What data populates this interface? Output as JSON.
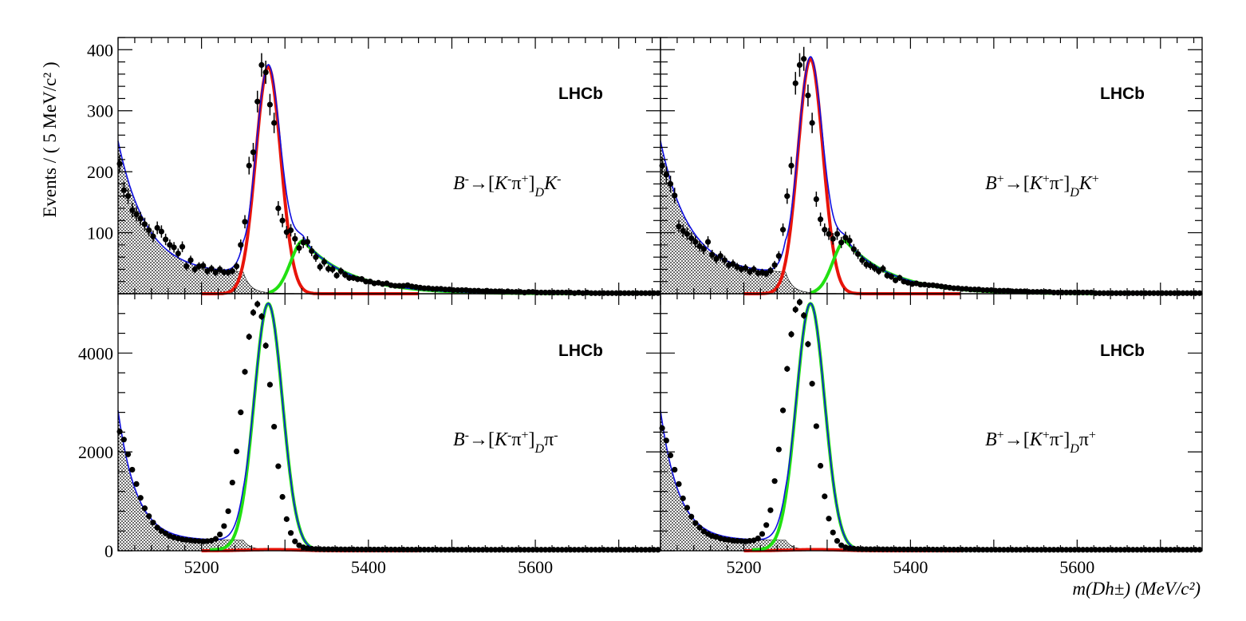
{
  "chart_data": {
    "type": "scatter",
    "xlabel": "m(Dh±) (MeV/c²)",
    "ylabel": "Events / ( 5 MeV/c² )",
    "xlim": [
      5100,
      5750
    ],
    "xticks": [
      5200,
      5400,
      5600
    ],
    "series_legend": {
      "data": "black points with error bars",
      "total_fit": "blue line",
      "DK_signal": "red line",
      "Dpi_peak": "green line",
      "background": "hatched black area"
    },
    "panels": [
      {
        "id": "top-left",
        "label": "LHCb",
        "decay": {
          "B": "B",
          "Bch": "-",
          "k1": "K",
          "k1c": "-",
          "h1": "π",
          "h1c": "+",
          "sub": "D",
          "h2": "K",
          "h2c": "-"
        },
        "ylim": [
          0,
          420
        ],
        "yticks": [
          100,
          200,
          300,
          400
        ],
        "x": [
          5102,
          5107,
          5112,
          5117,
          5122,
          5127,
          5132,
          5137,
          5142,
          5147,
          5152,
          5157,
          5162,
          5167,
          5172,
          5177,
          5182,
          5187,
          5192,
          5197,
          5202,
          5207,
          5212,
          5217,
          5222,
          5227,
          5232,
          5237,
          5242,
          5247,
          5252,
          5257,
          5262,
          5267,
          5272,
          5277,
          5282,
          5287,
          5292,
          5297,
          5302,
          5307,
          5312,
          5317,
          5322,
          5327,
          5332,
          5337,
          5342,
          5347,
          5352,
          5357,
          5362,
          5367,
          5372,
          5377,
          5382,
          5387,
          5392,
          5397,
          5402,
          5407,
          5412,
          5417,
          5422,
          5427,
          5432,
          5437,
          5442,
          5447,
          5452,
          5457,
          5462,
          5467,
          5472,
          5477,
          5482,
          5487,
          5492,
          5497,
          5502,
          5507,
          5512,
          5517,
          5522,
          5527,
          5532,
          5537,
          5542,
          5547,
          5552,
          5557,
          5562,
          5567,
          5572,
          5577,
          5582,
          5587,
          5592,
          5597,
          5602,
          5607,
          5612,
          5617,
          5622,
          5627,
          5632,
          5637,
          5642,
          5647,
          5652,
          5657,
          5662,
          5667,
          5672,
          5677,
          5682,
          5687,
          5692,
          5697,
          5702,
          5707,
          5712,
          5717,
          5722,
          5727,
          5732,
          5737,
          5742,
          5747
        ],
        "y": [
          213,
          170,
          160,
          137,
          130,
          123,
          114,
          104,
          94,
          108,
          102,
          89,
          80,
          76,
          66,
          77,
          45,
          55,
          40,
          45,
          46,
          37,
          41,
          35,
          40,
          35,
          35,
          37,
          45,
          80,
          118,
          210,
          232,
          315,
          375,
          363,
          310,
          280,
          140,
          120,
          101,
          104,
          90,
          75,
          84,
          85,
          70,
          60,
          44,
          52,
          41,
          40,
          30,
          37,
          31,
          26,
          26,
          24,
          24,
          20,
          20,
          17,
          18,
          16,
          17,
          14,
          13,
          13,
          13,
          14,
          12,
          11,
          10,
          9,
          9,
          8,
          8,
          8,
          7,
          7,
          6,
          6,
          6,
          6,
          5,
          5,
          5,
          4,
          5,
          4,
          4,
          4,
          3,
          4,
          3,
          3,
          3,
          2,
          3,
          3,
          2,
          2,
          2,
          2,
          2,
          2,
          2,
          2,
          2,
          1,
          2,
          1,
          2,
          1,
          1,
          1,
          1,
          1,
          1,
          1,
          1,
          1,
          1,
          1,
          1,
          1,
          1,
          1,
          1,
          1
        ]
      },
      {
        "id": "top-right",
        "label": "LHCb",
        "decay": {
          "B": "B",
          "Bch": "+",
          "k1": "K",
          "k1c": "+",
          "h1": "π",
          "h1c": "-",
          "sub": "D",
          "h2": "K",
          "h2c": "+"
        },
        "ylim": [
          0,
          420
        ],
        "yticks": [
          100,
          200,
          300,
          400
        ],
        "x": [
          5102,
          5107,
          5112,
          5117,
          5122,
          5127,
          5132,
          5137,
          5142,
          5147,
          5152,
          5157,
          5162,
          5167,
          5172,
          5177,
          5182,
          5187,
          5192,
          5197,
          5202,
          5207,
          5212,
          5217,
          5222,
          5227,
          5232,
          5237,
          5242,
          5247,
          5252,
          5257,
          5262,
          5267,
          5272,
          5277,
          5282,
          5287,
          5292,
          5297,
          5302,
          5307,
          5312,
          5317,
          5322,
          5327,
          5332,
          5337,
          5342,
          5347,
          5352,
          5357,
          5362,
          5367,
          5372,
          5377,
          5382,
          5387,
          5392,
          5397,
          5402,
          5407,
          5412,
          5417,
          5422,
          5427,
          5432,
          5437,
          5442,
          5447,
          5452,
          5457,
          5462,
          5467,
          5472,
          5477,
          5482,
          5487,
          5492,
          5497,
          5502,
          5507,
          5512,
          5517,
          5522,
          5527,
          5532,
          5537,
          5542,
          5547,
          5552,
          5557,
          5562,
          5567,
          5572,
          5577,
          5582,
          5587,
          5592,
          5597,
          5602,
          5607,
          5612,
          5617,
          5622,
          5627,
          5632,
          5637,
          5642,
          5647,
          5652,
          5657,
          5662,
          5667,
          5672,
          5677,
          5682,
          5687,
          5692,
          5697,
          5702,
          5707,
          5712,
          5717,
          5722,
          5727,
          5732,
          5737,
          5742,
          5747
        ],
        "y": [
          210,
          195,
          180,
          161,
          110,
          103,
          98,
          91,
          85,
          78,
          73,
          85,
          64,
          57,
          62,
          55,
          47,
          49,
          44,
          40,
          42,
          36,
          40,
          34,
          35,
          33,
          38,
          47,
          62,
          105,
          160,
          210,
          345,
          375,
          385,
          325,
          280,
          155,
          122,
          105,
          98,
          90,
          98,
          84,
          92,
          87,
          73,
          65,
          55,
          48,
          46,
          42,
          37,
          41,
          30,
          28,
          22,
          26,
          20,
          18,
          16,
          17,
          15,
          15,
          14,
          14,
          13,
          12,
          11,
          10,
          9,
          9,
          8,
          8,
          7,
          7,
          7,
          6,
          6,
          6,
          5,
          5,
          5,
          5,
          4,
          4,
          4,
          4,
          3,
          3,
          3,
          3,
          3,
          3,
          2,
          2,
          2,
          2,
          2,
          2,
          2,
          2,
          2,
          2,
          1,
          1,
          1,
          1,
          1,
          1,
          1,
          1,
          1,
          1,
          1,
          1,
          1,
          1,
          1,
          1,
          1,
          1,
          1,
          1,
          1,
          1,
          1,
          1,
          1,
          1
        ]
      },
      {
        "id": "bottom-left",
        "label": "LHCb",
        "decay": {
          "B": "B",
          "Bch": "-",
          "k1": "K",
          "k1c": "-",
          "h1": "π",
          "h1c": "+",
          "sub": "D",
          "h2": "π",
          "h2c": "-"
        },
        "ylim": [
          0,
          5200
        ],
        "yticks": [
          0,
          2000,
          4000
        ],
        "x": [
          5102,
          5107,
          5112,
          5117,
          5122,
          5127,
          5132,
          5137,
          5142,
          5147,
          5152,
          5157,
          5162,
          5167,
          5172,
          5177,
          5182,
          5187,
          5192,
          5197,
          5202,
          5207,
          5212,
          5217,
          5222,
          5227,
          5232,
          5237,
          5242,
          5247,
          5252,
          5257,
          5262,
          5267,
          5272,
          5277,
          5282,
          5287,
          5292,
          5297,
          5302,
          5307,
          5312,
          5317,
          5322,
          5327,
          5332,
          5337,
          5342,
          5347,
          5352,
          5357,
          5362,
          5367,
          5372,
          5377,
          5382,
          5387,
          5392,
          5397,
          5402,
          5407,
          5412,
          5417,
          5422,
          5427,
          5432,
          5437,
          5442,
          5447,
          5452,
          5457,
          5462,
          5467,
          5472,
          5477,
          5482,
          5487,
          5492,
          5497,
          5502,
          5507,
          5512,
          5517,
          5522,
          5527,
          5532,
          5537,
          5542,
          5547,
          5552,
          5557,
          5562,
          5567,
          5572,
          5577,
          5582,
          5587,
          5592,
          5597,
          5602,
          5607,
          5612,
          5617,
          5622,
          5627,
          5632,
          5637,
          5642,
          5647,
          5652,
          5657,
          5662,
          5667,
          5672,
          5677,
          5682,
          5687,
          5692,
          5697,
          5702,
          5707,
          5712,
          5717,
          5722,
          5727,
          5732,
          5737,
          5742,
          5747
        ],
        "y": [
          2410,
          2250,
          1950,
          1640,
          1350,
          1070,
          860,
          700,
          570,
          470,
          400,
          350,
          300,
          270,
          250,
          230,
          220,
          210,
          200,
          195,
          190,
          195,
          205,
          240,
          330,
          500,
          800,
          1380,
          2010,
          2800,
          3620,
          4330,
          4820,
          4990,
          4740,
          4150,
          3360,
          2510,
          1710,
          1090,
          640,
          360,
          190,
          110,
          70,
          50,
          40,
          35,
          32,
          30,
          30,
          29,
          28,
          28,
          27,
          27,
          26,
          26,
          26,
          25,
          25,
          25,
          25,
          24,
          24,
          24,
          24,
          23,
          23,
          23,
          23,
          23,
          22,
          22,
          22,
          22,
          22,
          21,
          21,
          21,
          21,
          21,
          21,
          20,
          20,
          20,
          20,
          20,
          20,
          20,
          20,
          20,
          20,
          20,
          20,
          20,
          20,
          20,
          20,
          20,
          20,
          20,
          20,
          20,
          20,
          20,
          20,
          20,
          20,
          20,
          20,
          20,
          20,
          20,
          20,
          20,
          20,
          20,
          20,
          20,
          20,
          20,
          20,
          20,
          20,
          20,
          20,
          20,
          20,
          20
        ]
      },
      {
        "id": "bottom-right",
        "label": "LHCb",
        "decay": {
          "B": "B",
          "Bch": "+",
          "k1": "K",
          "k1c": "+",
          "h1": "π",
          "h1c": "-",
          "sub": "D",
          "h2": "π",
          "h2c": "+"
        },
        "ylim": [
          0,
          5200
        ],
        "yticks": [
          0,
          2000,
          4000
        ],
        "x": [
          5102,
          5107,
          5112,
          5117,
          5122,
          5127,
          5132,
          5137,
          5142,
          5147,
          5152,
          5157,
          5162,
          5167,
          5172,
          5177,
          5182,
          5187,
          5192,
          5197,
          5202,
          5207,
          5212,
          5217,
          5222,
          5227,
          5232,
          5237,
          5242,
          5247,
          5252,
          5257,
          5262,
          5267,
          5272,
          5277,
          5282,
          5287,
          5292,
          5297,
          5302,
          5307,
          5312,
          5317,
          5322,
          5327,
          5332,
          5337,
          5342,
          5347,
          5352,
          5357,
          5362,
          5367,
          5372,
          5377,
          5382,
          5387,
          5392,
          5397,
          5402,
          5407,
          5412,
          5417,
          5422,
          5427,
          5432,
          5437,
          5442,
          5447,
          5452,
          5457,
          5462,
          5467,
          5472,
          5477,
          5482,
          5487,
          5492,
          5497,
          5502,
          5507,
          5512,
          5517,
          5522,
          5527,
          5532,
          5537,
          5542,
          5547,
          5552,
          5557,
          5562,
          5567,
          5572,
          5577,
          5582,
          5587,
          5592,
          5597,
          5602,
          5607,
          5612,
          5617,
          5622,
          5627,
          5632,
          5637,
          5642,
          5647,
          5652,
          5657,
          5662,
          5667,
          5672,
          5677,
          5682,
          5687,
          5692,
          5697,
          5702,
          5707,
          5712,
          5717,
          5722,
          5727,
          5732,
          5737,
          5742,
          5747
        ],
        "y": [
          2480,
          2230,
          1930,
          1640,
          1350,
          1060,
          870,
          690,
          560,
          470,
          390,
          340,
          300,
          280,
          250,
          230,
          220,
          205,
          200,
          195,
          190,
          200,
          210,
          250,
          340,
          520,
          820,
          1410,
          2050,
          2840,
          3680,
          4380,
          4880,
          5030,
          4760,
          4180,
          3380,
          2520,
          1720,
          1100,
          650,
          370,
          200,
          110,
          70,
          50,
          42,
          36,
          32,
          31,
          30,
          30,
          29,
          28,
          28,
          27,
          27,
          26,
          26,
          25,
          25,
          25,
          24,
          24,
          24,
          24,
          23,
          23,
          23,
          23,
          23,
          22,
          22,
          22,
          22,
          22,
          21,
          21,
          21,
          21,
          21,
          21,
          20,
          20,
          20,
          20,
          20,
          20,
          20,
          20,
          20,
          20,
          20,
          20,
          20,
          20,
          20,
          20,
          20,
          20,
          20,
          20,
          20,
          20,
          20,
          20,
          20,
          20,
          20,
          20,
          20,
          20,
          20,
          20,
          20,
          20,
          20,
          20,
          20,
          20,
          20,
          20,
          20,
          20,
          20,
          20,
          20,
          20,
          20,
          20
        ]
      }
    ]
  }
}
